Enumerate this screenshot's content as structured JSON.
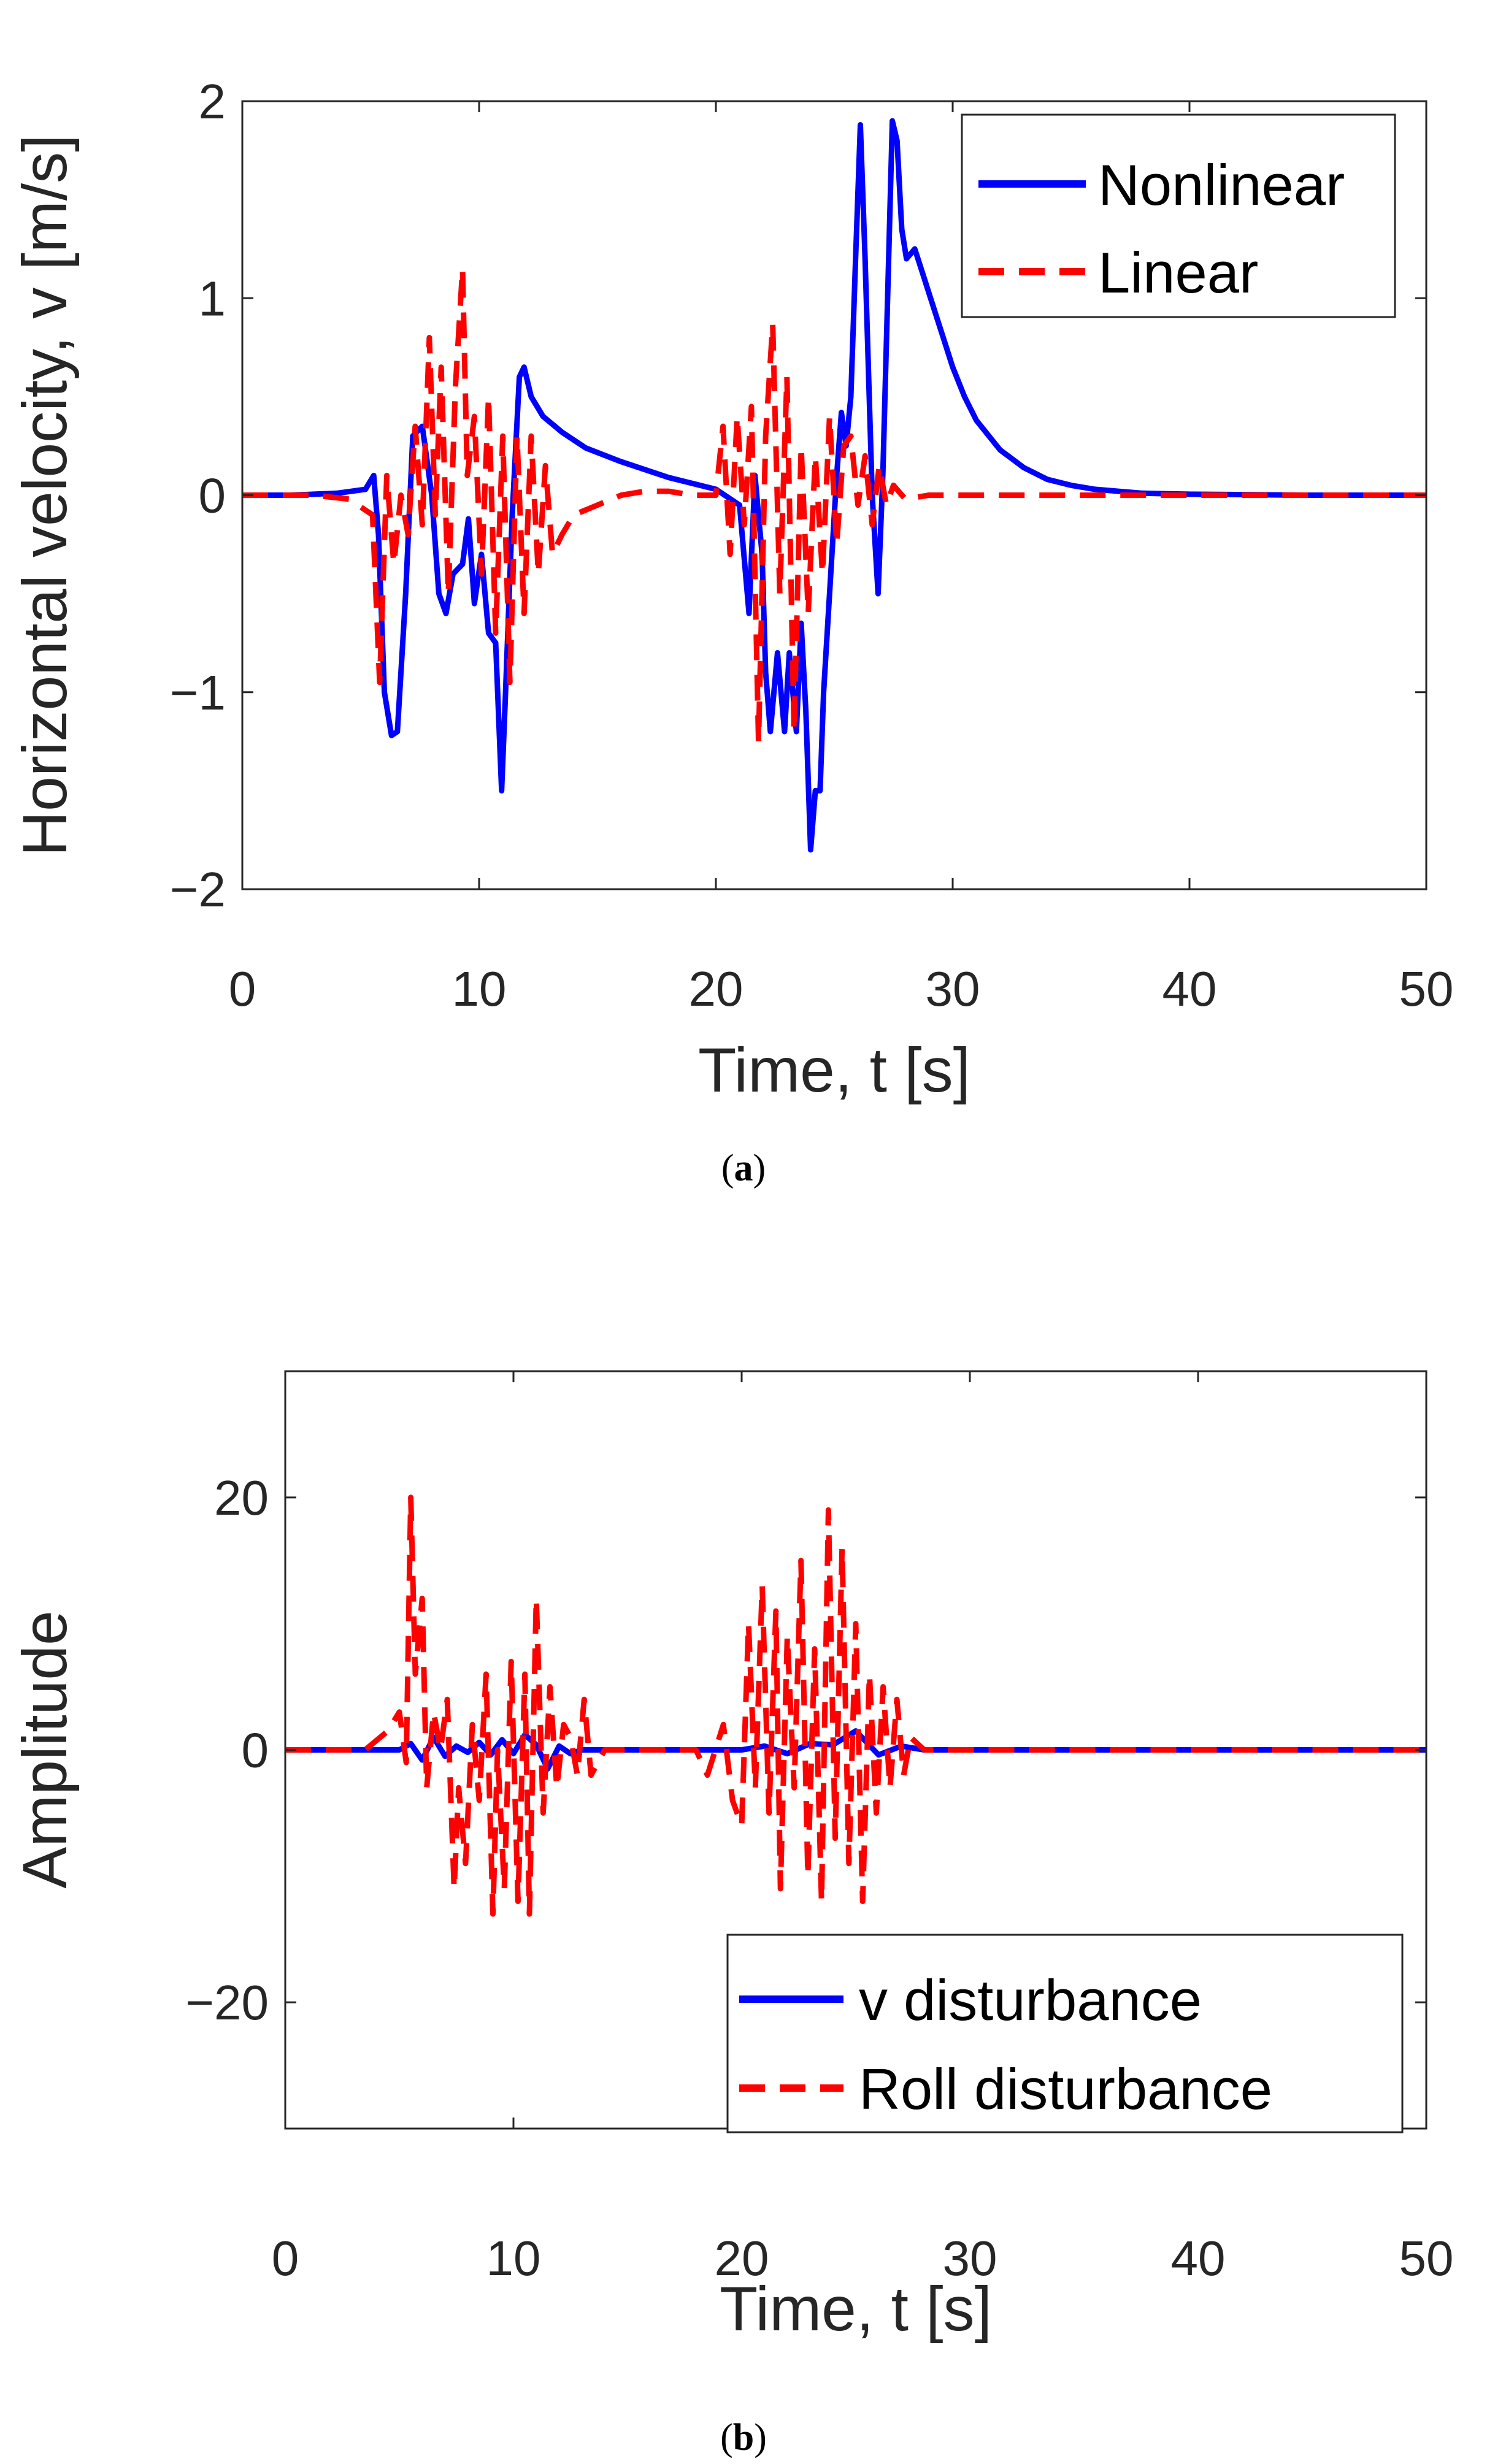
{
  "chart_data": [
    {
      "type": "line",
      "panel": "a",
      "caption": "(a)",
      "xlabel": "Time, t [s]",
      "ylabel": "Horizontal velocity, v [m/s]",
      "xlim": [
        0,
        50
      ],
      "ylim": [
        -2,
        2
      ],
      "xticks": [
        0,
        10,
        20,
        30,
        40,
        50
      ],
      "yticks": [
        -2,
        -1,
        0,
        1,
        2
      ],
      "xtick_labels": [
        "0",
        "10",
        "20",
        "30",
        "40",
        "50"
      ],
      "ytick_labels": [
        "−2",
        "−1",
        "0",
        "1",
        "2"
      ],
      "legend_position": "top-right",
      "series": [
        {
          "name": "Nonlinear",
          "color": "#0000FF",
          "style": "solid",
          "x": [
            0,
            2,
            4,
            5.2,
            5.55,
            5.75,
            6.0,
            6.3,
            6.55,
            6.9,
            7.2,
            7.6,
            8.0,
            8.3,
            8.6,
            8.9,
            9.3,
            9.55,
            9.8,
            10.1,
            10.4,
            10.7,
            10.95,
            11.1,
            11.4,
            11.7,
            11.9,
            12.2,
            12.7,
            13.5,
            14.5,
            16,
            18,
            20,
            21,
            21.4,
            21.65,
            21.95,
            22.1,
            22.3,
            22.6,
            22.9,
            23.1,
            23.4,
            23.6,
            23.8,
            24.0,
            24.2,
            24.4,
            24.55,
            24.8,
            25.1,
            25.3,
            25.5,
            25.7,
            25.9,
            26.1,
            26.3,
            26.6,
            26.85,
            27.05,
            27.25,
            27.45,
            27.65,
            27.85,
            28.05,
            28.4,
            28.8,
            29.2,
            29.6,
            30.0,
            30.5,
            31,
            32,
            33,
            34,
            35,
            36,
            38,
            40,
            45,
            50
          ],
          "y": [
            0,
            0,
            0.01,
            0.03,
            0.1,
            -0.2,
            -1.0,
            -1.22,
            -1.2,
            -0.5,
            0.3,
            0.35,
            0.0,
            -0.5,
            -0.6,
            -0.4,
            -0.35,
            -0.12,
            -0.55,
            -0.3,
            -0.7,
            -0.75,
            -1.5,
            -1.05,
            -0.1,
            0.6,
            0.65,
            0.5,
            0.4,
            0.32,
            0.24,
            0.17,
            0.09,
            0.03,
            -0.05,
            -0.6,
            0.1,
            -0.3,
            -0.9,
            -1.2,
            -0.8,
            -1.2,
            -0.8,
            -1.2,
            -0.65,
            -1.1,
            -1.8,
            -1.5,
            -1.5,
            -1.0,
            -0.5,
            0.1,
            0.42,
            0.25,
            0.5,
            1.2,
            1.88,
            1.2,
            0.0,
            -0.5,
            0.1,
            1.0,
            1.9,
            1.8,
            1.35,
            1.2,
            1.25,
            1.1,
            0.95,
            0.8,
            0.65,
            0.5,
            0.38,
            0.23,
            0.14,
            0.08,
            0.05,
            0.03,
            0.01,
            0.005,
            0,
            0
          ]
        },
        {
          "name": "Linear",
          "color": "#FF0000",
          "style": "dashed",
          "x": [
            0,
            3,
            4.5,
            5.5,
            5.8,
            6.1,
            6.4,
            6.7,
            7.0,
            7.3,
            7.6,
            7.9,
            8.15,
            8.4,
            8.7,
            9.0,
            9.3,
            9.5,
            9.8,
            10.1,
            10.4,
            10.7,
            11.0,
            11.3,
            11.6,
            11.9,
            12.2,
            12.5,
            12.8,
            13.1,
            13.5,
            14,
            15,
            16,
            17,
            18,
            19,
            20,
            20.3,
            20.6,
            20.9,
            21.2,
            21.5,
            21.8,
            22.1,
            22.4,
            22.7,
            23.0,
            23.3,
            23.6,
            23.9,
            24.2,
            24.5,
            24.8,
            25.1,
            25.4,
            25.7,
            26.0,
            26.3,
            26.6,
            26.9,
            27.2,
            27.5,
            28,
            29,
            30,
            32,
            35,
            40,
            45,
            50
          ],
          "y": [
            0,
            0,
            -0.02,
            -0.1,
            -0.95,
            0.1,
            -0.35,
            0.0,
            -0.2,
            0.35,
            -0.15,
            0.8,
            -0.1,
            0.65,
            -0.5,
            0.55,
            1.15,
            0.1,
            0.4,
            -0.4,
            0.5,
            -0.7,
            0.3,
            -0.95,
            0.3,
            -0.6,
            0.3,
            -0.4,
            0.15,
            -0.3,
            -0.2,
            -0.1,
            -0.05,
            0.0,
            0.02,
            0.02,
            0.0,
            0.0,
            0.35,
            -0.3,
            0.4,
            -0.15,
            0.45,
            -1.25,
            0.3,
            0.87,
            -0.5,
            0.6,
            -1.2,
            0.25,
            -0.6,
            0.2,
            -0.4,
            0.4,
            -0.25,
            0.25,
            0.3,
            -0.05,
            0.2,
            -0.15,
            0.15,
            -0.05,
            0.05,
            -0.02,
            0,
            0,
            0,
            0,
            0,
            0,
            0
          ]
        }
      ]
    },
    {
      "type": "line",
      "panel": "b",
      "caption": "(b)",
      "xlabel": "Time, t [s]",
      "ylabel": "Amplitude",
      "xlim": [
        0,
        50
      ],
      "ylim": [
        -30,
        30
      ],
      "xticks": [
        0,
        10,
        20,
        30,
        40,
        50
      ],
      "yticks": [
        -20,
        0,
        20
      ],
      "xtick_labels": [
        "0",
        "10",
        "20",
        "30",
        "40",
        "50"
      ],
      "ytick_labels": [
        "−20",
        "0",
        "20"
      ],
      "legend_position": "bottom-right",
      "series": [
        {
          "name": "v disturbance",
          "color": "#0000FF",
          "style": "solid",
          "x": [
            0,
            5,
            5.5,
            6.0,
            6.5,
            7.0,
            7.5,
            8.0,
            8.5,
            9.0,
            9.5,
            10.0,
            10.5,
            11.0,
            11.5,
            12.0,
            12.5,
            13,
            15,
            20,
            21,
            22,
            23,
            24,
            25,
            26,
            27,
            28,
            30,
            40,
            50
          ],
          "y": [
            0,
            0,
            0.5,
            -0.8,
            1.0,
            -0.5,
            0.3,
            -0.2,
            0.6,
            -0.4,
            0.8,
            -0.3,
            1.2,
            0.4,
            -1.5,
            0.3,
            -0.3,
            0,
            0,
            0,
            0.3,
            -0.3,
            0.5,
            0.4,
            1.5,
            -0.4,
            0.3,
            0,
            0,
            0,
            0
          ]
        },
        {
          "name": "Roll disturbance",
          "color": "#FF0000",
          "style": "dashed",
          "x": [
            0,
            3.5,
            4.5,
            5.0,
            5.3,
            5.5,
            5.7,
            6.0,
            6.2,
            6.5,
            6.8,
            7.1,
            7.4,
            7.6,
            7.9,
            8.2,
            8.5,
            8.8,
            9.1,
            9.3,
            9.6,
            9.9,
            10.2,
            10.5,
            10.7,
            11.0,
            11.3,
            11.6,
            11.9,
            12.2,
            12.5,
            12.8,
            13.1,
            13.4,
            14,
            16,
            18,
            18.5,
            19.2,
            19.6,
            20.0,
            20.3,
            20.6,
            20.9,
            21.2,
            21.5,
            21.7,
            22.0,
            22.3,
            22.6,
            22.9,
            23.2,
            23.5,
            23.8,
            24.1,
            24.4,
            24.7,
            25.0,
            25.3,
            25.6,
            25.9,
            26.2,
            26.5,
            26.8,
            27.1,
            27.4,
            28,
            30,
            40,
            50
          ],
          "y": [
            0,
            0,
            1.5,
            3,
            -1,
            20,
            6,
            12,
            -3,
            3,
            0,
            4,
            -11,
            -3,
            -9,
            2,
            -4,
            6,
            -13,
            0,
            -11,
            7,
            -12,
            6,
            -13,
            12,
            -5,
            5,
            -3,
            2,
            1,
            -2,
            4,
            -2,
            0,
            0,
            0,
            -2,
            2,
            -4,
            -6,
            10,
            -3,
            13,
            -5,
            11,
            -11,
            9,
            -3,
            15,
            -10,
            8,
            -12,
            19,
            -7,
            16,
            -9,
            10,
            -12,
            6,
            -5,
            5,
            -3,
            4,
            -2,
            1,
            0,
            0,
            0,
            0
          ]
        }
      ]
    }
  ]
}
